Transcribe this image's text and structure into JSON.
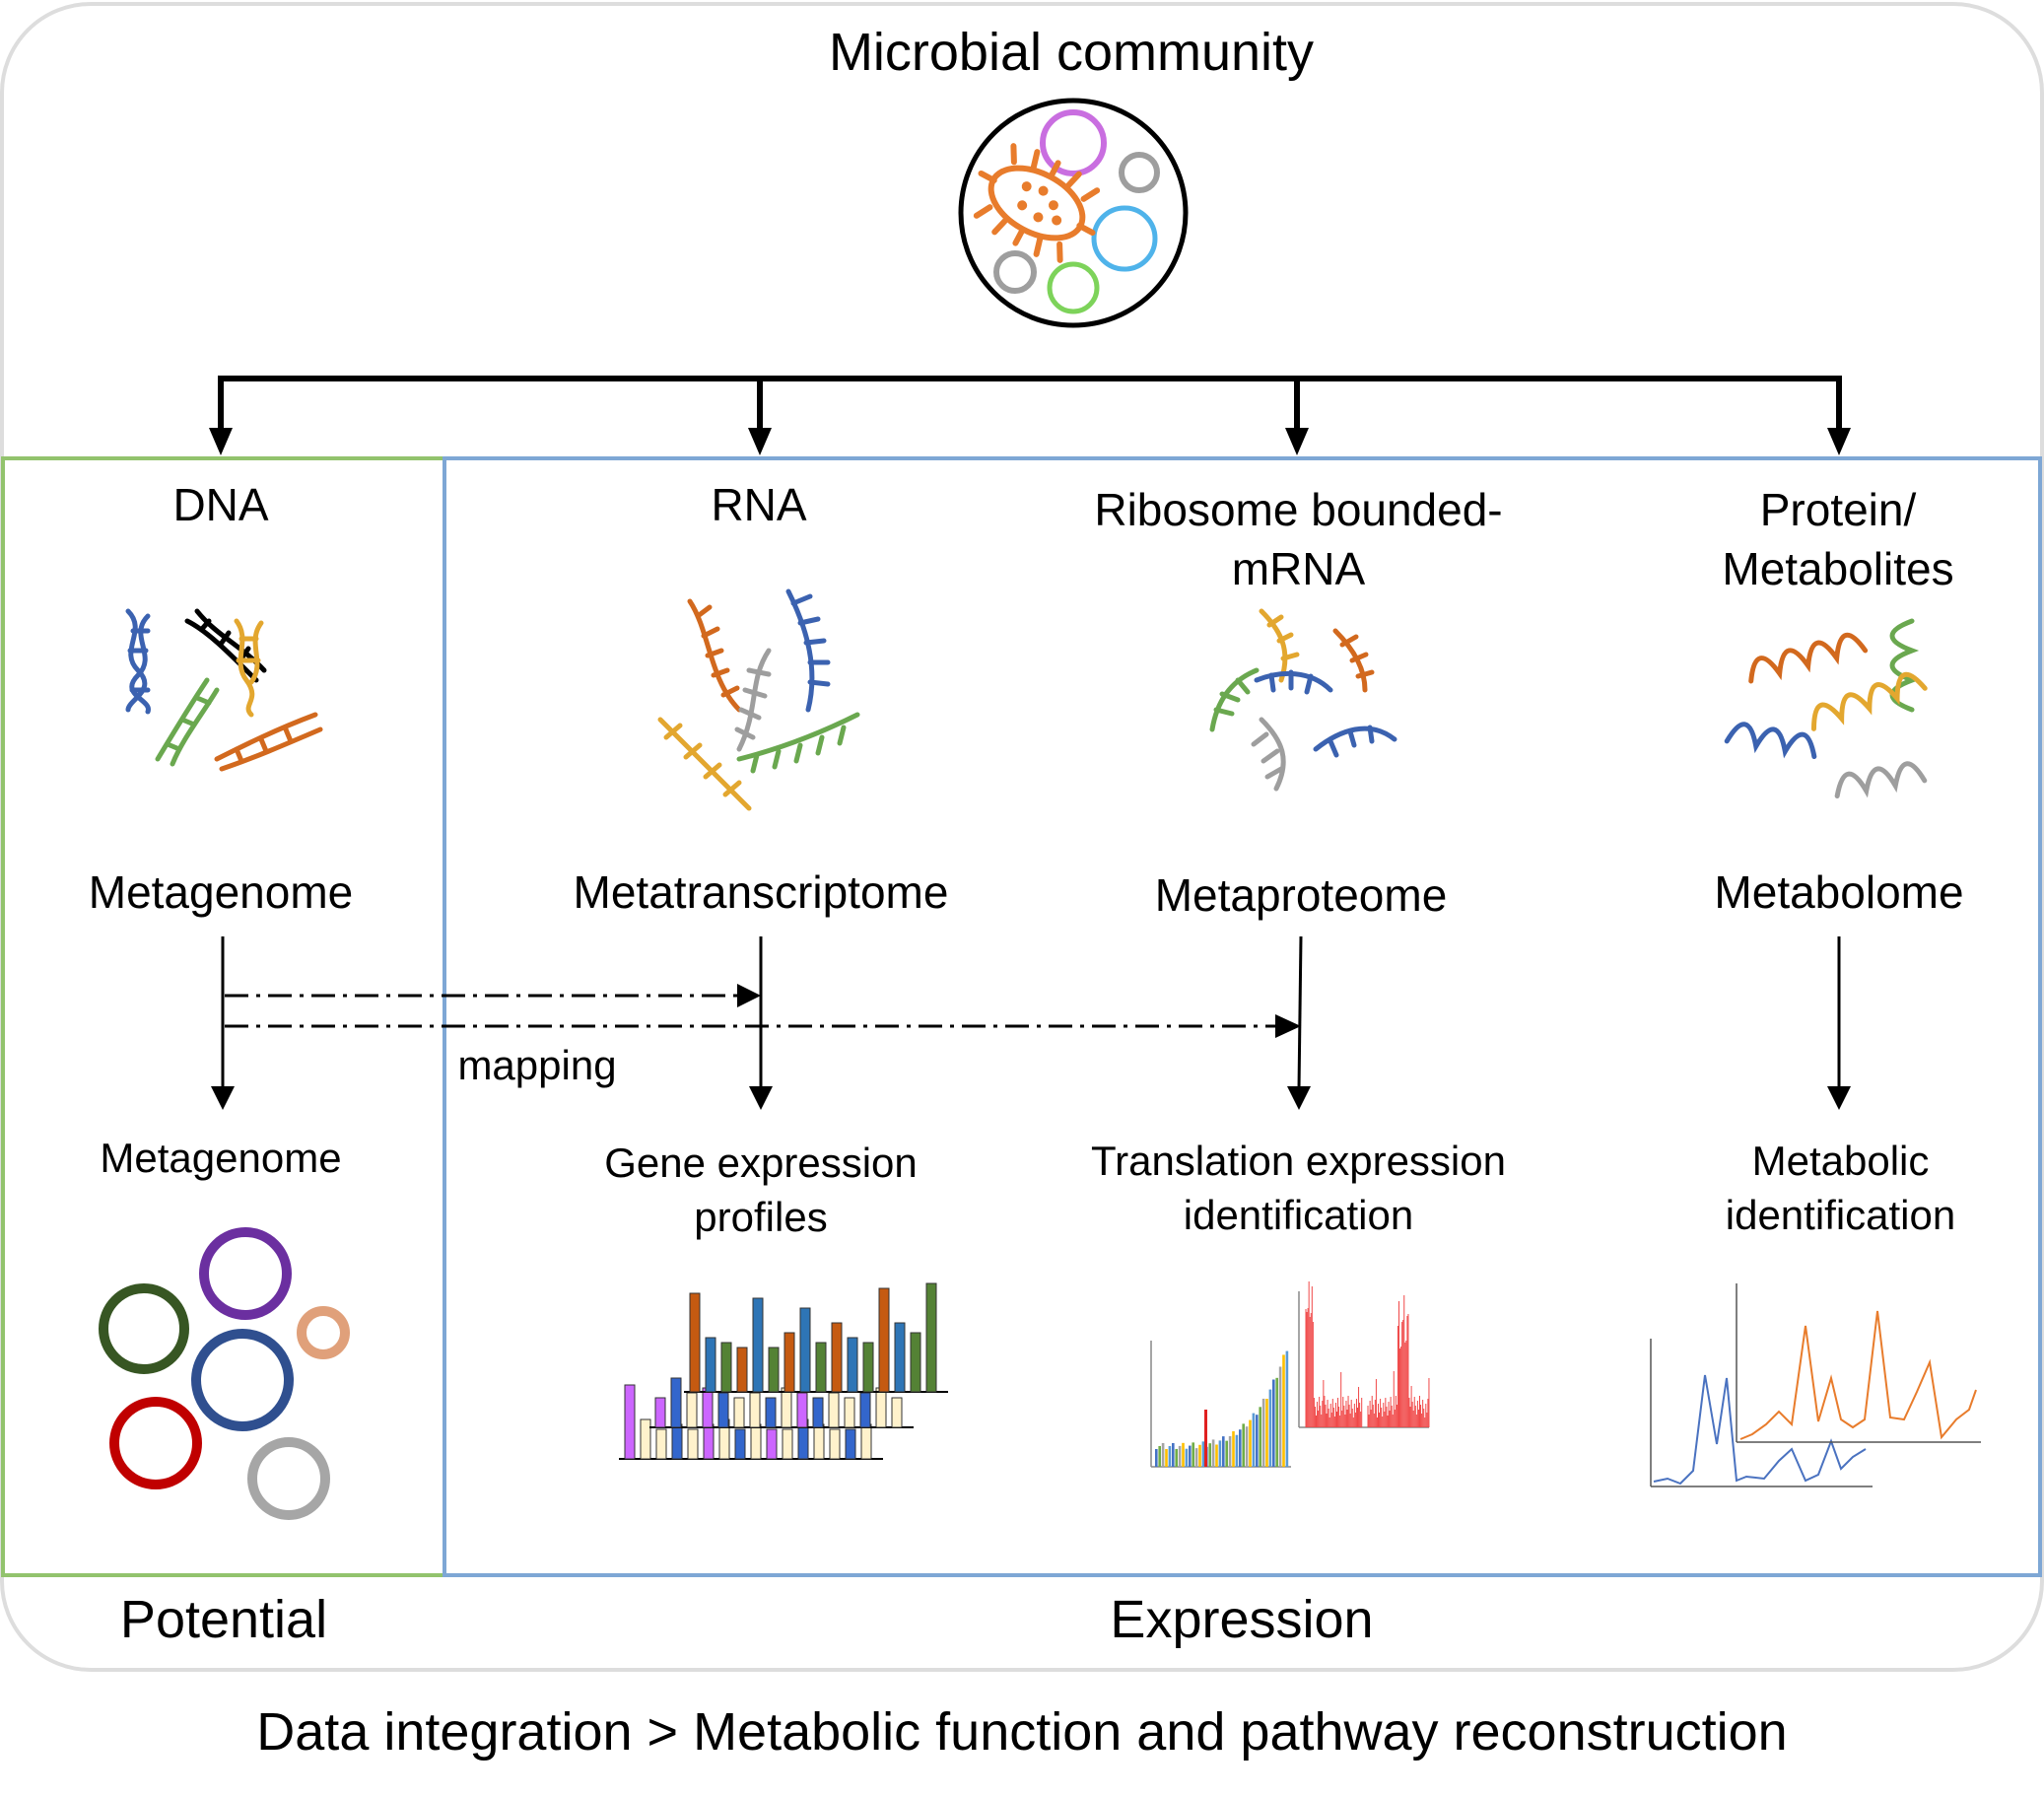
{
  "title": "Microbial community",
  "columns": [
    {
      "molecule": "DNA",
      "omics": "Metagenome",
      "output": "Metagenome"
    },
    {
      "molecule": "RNA",
      "omics": "Metatranscriptome",
      "output": "Gene expression profiles"
    },
    {
      "molecule": "Ribosome bounded-mRNA",
      "omics": "Metaproteome",
      "output": "Translation expression identification"
    },
    {
      "molecule": "Protein/ Metabolites",
      "omics": "Metabolome",
      "output": "Metabolic identification"
    }
  ],
  "mapping_label": "mapping",
  "panels": {
    "potential": "Potential",
    "expression": "Expression"
  },
  "footer": "Data integration > Metabolic function and pathway reconstruction",
  "colors": {
    "potential_border": "#92c36d",
    "expression_border": "#7ea7d5",
    "outer_border": "#dddddd",
    "orange": "#e87c2c",
    "purple": "#c96ee0",
    "grey": "#9e9e9e",
    "blue": "#4fb3ea",
    "green": "#7dd35a"
  }
}
